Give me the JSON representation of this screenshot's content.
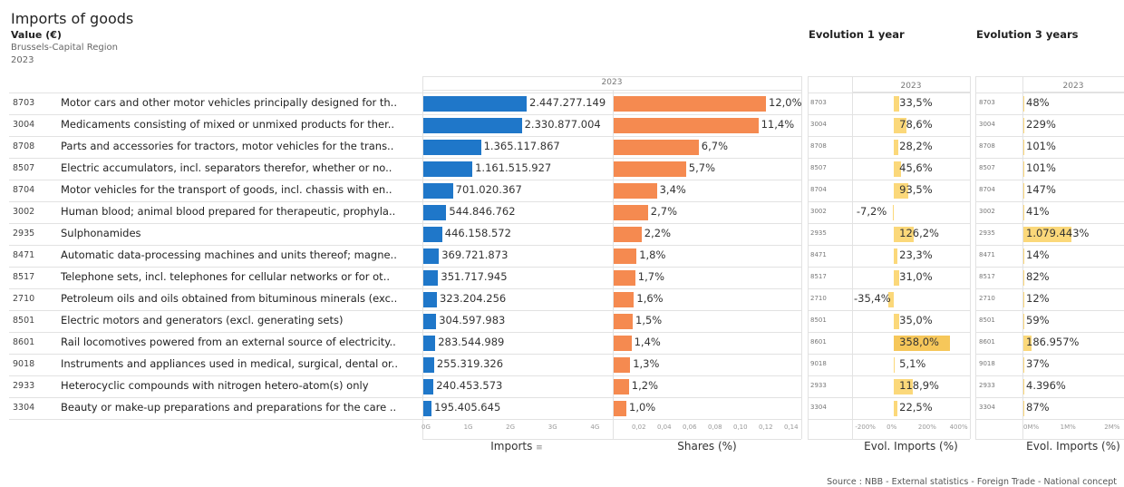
{
  "header": {
    "title": "Imports of goods",
    "subtitle": "Value (€)",
    "region": "Brussels-Capital Region",
    "year": "2023",
    "evolution_1y_title": "Evolution 1 year",
    "evolution_3y_title": "Evolution 3 years"
  },
  "panels": {
    "imports_year": "2023",
    "evol1_year": "2023",
    "evol3_year": "2023",
    "imports_axis_title": "Imports",
    "shares_axis_title": "Shares (%)",
    "evol1_axis_title": "Evol. Imports (%)",
    "evol3_axis_title": "Evol. Imports (%)"
  },
  "source": "Source : NBB - External statistics - Foreign Trade - National concept",
  "colors": {
    "imports_bar": "#1f77c9",
    "shares_bar": "#f58a50",
    "evol_bar": "#fbd87a",
    "evol_bar_highlight": "#f6c75a"
  },
  "chart_data": [
    {
      "type": "bar",
      "title": "Imports",
      "categories": [
        "8703",
        "3004",
        "8708",
        "8507",
        "8704",
        "3002",
        "2935",
        "8471",
        "8517",
        "2710",
        "8501",
        "8601",
        "9018",
        "2933",
        "3304"
      ],
      "descriptions": [
        "Motor cars and other motor vehicles principally designed for th..",
        "Medicaments consisting of mixed or unmixed products for ther..",
        "Parts and accessories for tractors, motor vehicles for the trans..",
        "Electric accumulators, incl. separators therefor, whether or no..",
        "Motor vehicles for the transport of goods, incl. chassis with en..",
        "Human blood; animal blood prepared for therapeutic, prophyla..",
        "Sulphonamides",
        "Automatic data-processing machines and units thereof; magne..",
        "Telephone sets, incl. telephones for cellular networks or for ot..",
        "Petroleum oils and oils obtained from bituminous minerals (exc..",
        "Electric motors and generators (excl. generating sets)",
        "Rail locomotives powered from an external source of electricity..",
        "Instruments and appliances used in medical, surgical, dental or..",
        "Heterocyclic compounds with nitrogen hetero-atom(s) only",
        "Beauty or make-up preparations and preparations for the care .."
      ],
      "values": [
        2447277149,
        2330877004,
        1365117867,
        1161515927,
        701020367,
        544846762,
        446158572,
        369721873,
        351717945,
        323204256,
        304597983,
        283544989,
        255319326,
        240453573,
        195405645
      ],
      "labels": [
        "2.447.277.149",
        "2.330.877.004",
        "1.365.117.867",
        "1.161.515.927",
        "701.020.367",
        "544.846.762",
        "446.158.572",
        "369.721.873",
        "351.717.945",
        "323.204.256",
        "304.597.983",
        "283.544.989",
        "255.319.326",
        "240.453.573",
        "195.405.645"
      ],
      "xlabel": "Imports",
      "xticks": [
        "0G",
        "1G",
        "2G",
        "3G",
        "4G"
      ],
      "xlim": [
        0,
        4400000000
      ]
    },
    {
      "type": "bar",
      "title": "Shares (%)",
      "values": [
        0.12,
        0.114,
        0.067,
        0.057,
        0.034,
        0.027,
        0.022,
        0.018,
        0.017,
        0.016,
        0.015,
        0.014,
        0.013,
        0.012,
        0.01
      ],
      "labels": [
        "12,0%",
        "11,4%",
        "6,7%",
        "5,7%",
        "3,4%",
        "2,7%",
        "2,2%",
        "1,8%",
        "1,7%",
        "1,6%",
        "1,5%",
        "1,4%",
        "1,3%",
        "1,2%",
        "1,0%"
      ],
      "xlabel": "Shares (%)",
      "xticks": [
        "0,02",
        "0,04",
        "0,06",
        "0,08",
        "0,10",
        "0,12",
        "0,14"
      ],
      "xlim": [
        0,
        0.145
      ]
    },
    {
      "type": "bar",
      "title": "Evolution 1 year",
      "values": [
        33.5,
        78.6,
        28.2,
        45.6,
        93.5,
        -7.2,
        126.2,
        23.3,
        31.0,
        -35.4,
        35.0,
        358.0,
        5.1,
        118.9,
        22.5
      ],
      "labels": [
        "33,5%",
        "78,6%",
        "28,2%",
        "45,6%",
        "93,5%",
        "-7,2%",
        "126,2%",
        "23,3%",
        "31,0%",
        "-35,4%",
        "35,0%",
        "358,0%",
        "5,1%",
        "118,9%",
        "22,5%"
      ],
      "xlabel": "Evol. Imports (%)",
      "xticks": [
        "-200%",
        "0%",
        "200%",
        "400%"
      ],
      "xlim": [
        -260,
        460
      ]
    },
    {
      "type": "bar",
      "title": "Evolution 3 years",
      "values": [
        48,
        229,
        101,
        101,
        147,
        41,
        1079443,
        14,
        82,
        12,
        59,
        186957,
        37,
        4396,
        87
      ],
      "labels": [
        "48%",
        "229%",
        "101%",
        "101%",
        "147%",
        "41%",
        "1.079.443%",
        "14%",
        "82%",
        "12%",
        "59%",
        "186.957%",
        "37%",
        "4.396%",
        "87%"
      ],
      "xlabel": "Evol. Imports (%)",
      "xticks": [
        "0M%",
        "1M%",
        "2M%"
      ],
      "xlim": [
        0,
        2200000
      ]
    }
  ]
}
